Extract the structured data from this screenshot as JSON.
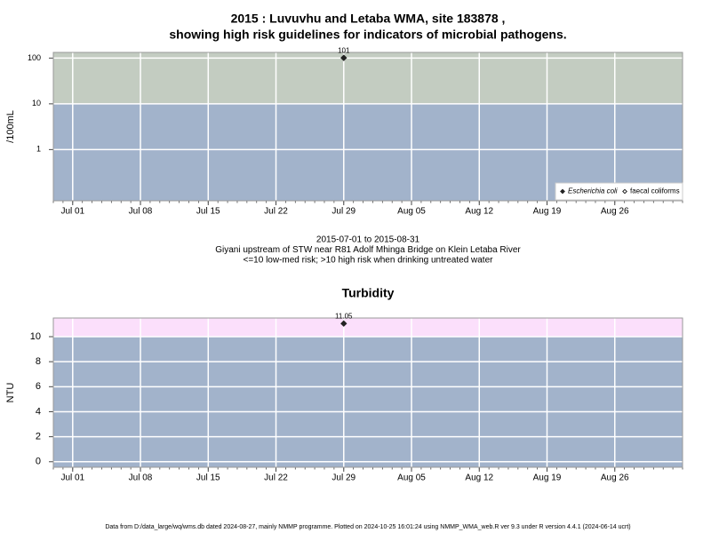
{
  "chart_data": [
    {
      "type": "scatter",
      "title": [
        "2015 : Luvuvhu and Letaba WMA, site 183878 ,",
        "showing high risk guidelines for indicators of microbial pathogens."
      ],
      "y_label": "/100mL",
      "log_y": true,
      "xlim": [
        "Jun 29",
        "Sep 02"
      ],
      "xticks": [
        "Jul 01",
        "Jul 08",
        "Jul 15",
        "Jul 22",
        "Jul 29",
        "Aug 05",
        "Aug 12",
        "Aug 19",
        "Aug 26"
      ],
      "ylim": [
        0.076,
        133
      ],
      "yticks": [
        1,
        10,
        100
      ],
      "threshold": 10,
      "band_colors": [
        "#a2b3cb",
        "#c3ccc1"
      ],
      "grid": true,
      "legend": "bottom right",
      "x": [
        "Jul 29"
      ],
      "series": [
        {
          "name": "Escherichia coli",
          "color": "#222222",
          "filled": true,
          "italic": true,
          "values": [
            101
          ]
        },
        {
          "name": "faecal coliforms",
          "color": "#222222",
          "filled": false,
          "italic": false,
          "values": [
            null
          ]
        }
      ],
      "caption": [
        "2015-07-01 to 2015-08-31",
        "Giyani upstream of STW near R81 Adolf Mhinga Bridge on Klein Letaba River",
        "<=10 low-med risk; >10 high risk when drinking untreated water"
      ]
    },
    {
      "type": "scatter",
      "title": [
        "Turbidity"
      ],
      "y_label": "NTU",
      "log_y": false,
      "xlim": [
        "Jun 29",
        "Sep 02"
      ],
      "xticks": [
        "Jul 01",
        "Jul 08",
        "Jul 15",
        "Jul 22",
        "Jul 29",
        "Aug 05",
        "Aug 12",
        "Aug 19",
        "Aug 26"
      ],
      "ylim": [
        -0.442,
        11.492
      ],
      "yticks": [
        0,
        2,
        4,
        6,
        8,
        10
      ],
      "threshold": 10,
      "band_colors": [
        "#a2b3cb",
        "#fbdffb"
      ],
      "grid": true,
      "x": [
        "Jul 29"
      ],
      "series": [
        {
          "name": "Turbidity",
          "color": "#222222",
          "filled": true,
          "values": [
            11.05
          ]
        }
      ]
    }
  ],
  "footer": "Data from D:/data_large/wq/wms.db dated 2024-08-27, mainly NMMP programme. Plotted on 2024-10-25 16:01:24 using NMMP_WMA_web.R ver 9.3 under R version 4.4.1 (2024-06-14 ucrt)"
}
